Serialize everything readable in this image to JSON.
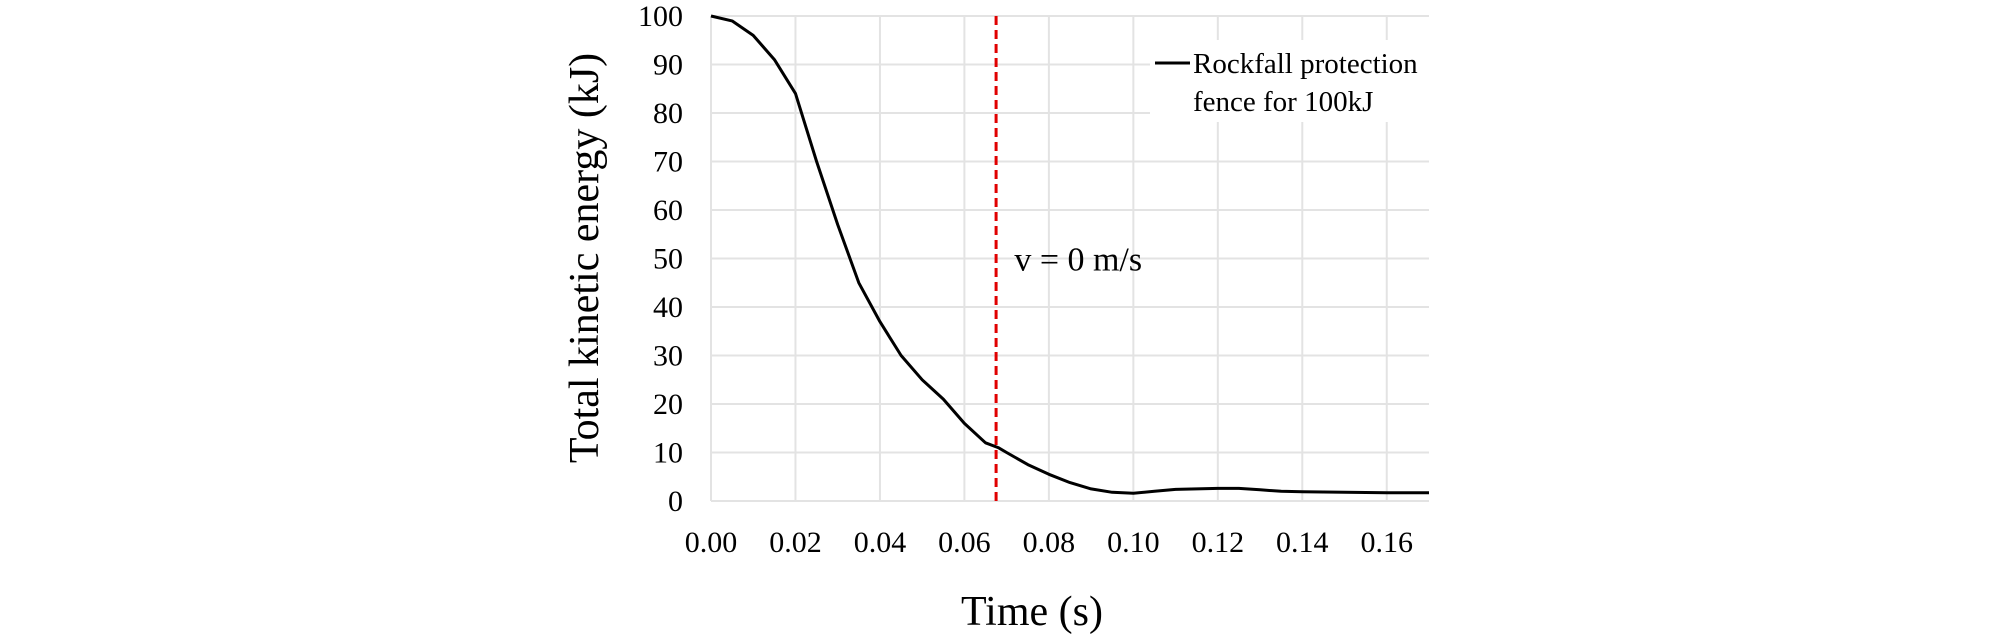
{
  "chart_data": {
    "type": "line",
    "title": "",
    "xlabel": "Time (s)",
    "ylabel": "Total kinetic energy (kJ)",
    "xlim": [
      0,
      0.17
    ],
    "ylim": [
      0,
      100
    ],
    "xticks": [
      "0.00",
      "0.02",
      "0.04",
      "0.06",
      "0.08",
      "0.10",
      "0.12",
      "0.14",
      "0.16"
    ],
    "yticks": [
      "0",
      "10",
      "20",
      "30",
      "40",
      "50",
      "60",
      "70",
      "80",
      "90",
      "100"
    ],
    "grid": true,
    "legend_position": "top-right",
    "series": [
      {
        "name": "Rockfall protection fence for 100kJ",
        "color": "#000000",
        "x": [
          0,
          0.005,
          0.01,
          0.015,
          0.02,
          0.025,
          0.03,
          0.035,
          0.04,
          0.045,
          0.05,
          0.055,
          0.06,
          0.065,
          0.068,
          0.07,
          0.075,
          0.08,
          0.085,
          0.09,
          0.095,
          0.1,
          0.105,
          0.11,
          0.115,
          0.12,
          0.125,
          0.13,
          0.135,
          0.14,
          0.15,
          0.16,
          0.17
        ],
        "y": [
          100,
          99,
          96,
          91,
          84,
          70,
          57,
          45,
          37,
          30,
          25,
          21,
          16,
          12,
          11,
          10,
          7.5,
          5.5,
          3.8,
          2.5,
          1.8,
          1.6,
          2.0,
          2.4,
          2.5,
          2.6,
          2.6,
          2.3,
          2.0,
          1.9,
          1.8,
          1.7,
          1.7
        ]
      }
    ],
    "legend_lines": [
      "Rockfall protection",
      "fence for 100kJ"
    ],
    "annotations": [
      {
        "type": "vline",
        "x": 0.0675,
        "color": "#e00000",
        "style": "dashed"
      },
      {
        "type": "text",
        "text": "v = 0 m/s",
        "x": 0.073,
        "y": 50
      }
    ]
  }
}
